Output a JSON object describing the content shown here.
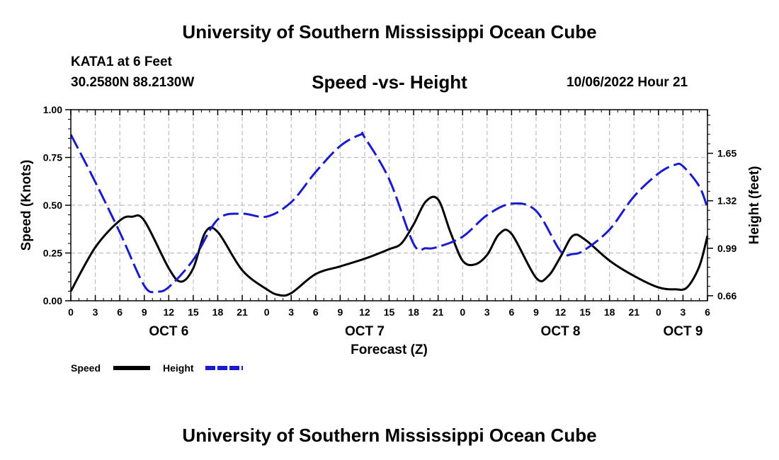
{
  "header": {
    "title": "University of Southern Mississippi Ocean Cube",
    "station_name": "KATA1 at 6 Feet",
    "coords": "30.2580N  88.2130W",
    "chart_title": "Speed -vs- Height",
    "run_time": "10/06/2022 Hour 21"
  },
  "footer": {
    "title": "University of Southern Mississippi Ocean Cube"
  },
  "colors": {
    "speed": "#000000",
    "height": "#1a1ad0"
  },
  "chart_data": {
    "type": "line",
    "title": "Speed -vs- Height",
    "xlabel": "Forecast (Z)",
    "ylabel": "Speed (Knots)",
    "y2label": "Height (feet)",
    "xlim": [
      0,
      78
    ],
    "ylim": [
      0,
      1
    ],
    "y2lim": [
      0.625,
      1.953
    ],
    "x_ticks": [
      0,
      3,
      6,
      9,
      12,
      15,
      18,
      21,
      24,
      27,
      30,
      33,
      36,
      39,
      42,
      45,
      48,
      51,
      54,
      57,
      60,
      63,
      66,
      69,
      72,
      75,
      78
    ],
    "x_tick_labels": [
      "0",
      "3",
      "6",
      "9",
      "12",
      "15",
      "18",
      "21",
      "0",
      "3",
      "6",
      "9",
      "12",
      "15",
      "18",
      "21",
      "0",
      "3",
      "6",
      "9",
      "12",
      "15",
      "18",
      "21",
      "0",
      "3",
      "6"
    ],
    "day_labels": [
      {
        "x": 12,
        "label": "OCT 6"
      },
      {
        "x": 36,
        "label": "OCT 7"
      },
      {
        "x": 60,
        "label": "OCT 8"
      },
      {
        "x": 75,
        "label": "OCT 9"
      }
    ],
    "y_ticks": [
      0.0,
      0.25,
      0.5,
      0.75,
      1.0
    ],
    "y_tick_labels": [
      "0.00",
      "0.25",
      "0.50",
      "0.75",
      "1.00"
    ],
    "y2_ticks": [
      0.66,
      0.99,
      1.32,
      1.65
    ],
    "y2_tick_labels": [
      "0.66",
      "0.99",
      "1.32",
      "1.65"
    ],
    "legend": [
      {
        "label": "Speed",
        "series": "speed",
        "style": "solid"
      },
      {
        "label": "Height",
        "series": "height",
        "style": "dashed"
      }
    ],
    "series": [
      {
        "name": "Speed",
        "axis": "left",
        "style": "solid",
        "points": [
          [
            0,
            0.05
          ],
          [
            3,
            0.28
          ],
          [
            6,
            0.42
          ],
          [
            7.5,
            0.44
          ],
          [
            9,
            0.42
          ],
          [
            12,
            0.17
          ],
          [
            13.5,
            0.1
          ],
          [
            15,
            0.17
          ],
          [
            16.5,
            0.36
          ],
          [
            18,
            0.36
          ],
          [
            21,
            0.16
          ],
          [
            24,
            0.06
          ],
          [
            25.5,
            0.03
          ],
          [
            27,
            0.04
          ],
          [
            30,
            0.14
          ],
          [
            33,
            0.18
          ],
          [
            36,
            0.22
          ],
          [
            39,
            0.27
          ],
          [
            40.5,
            0.3
          ],
          [
            42,
            0.4
          ],
          [
            43.5,
            0.52
          ],
          [
            45,
            0.53
          ],
          [
            46.5,
            0.36
          ],
          [
            48,
            0.21
          ],
          [
            49.5,
            0.19
          ],
          [
            51,
            0.24
          ],
          [
            52.5,
            0.35
          ],
          [
            54,
            0.35
          ],
          [
            57,
            0.12
          ],
          [
            58.5,
            0.13
          ],
          [
            60,
            0.23
          ],
          [
            61.5,
            0.34
          ],
          [
            63,
            0.32
          ],
          [
            66,
            0.21
          ],
          [
            69,
            0.13
          ],
          [
            72,
            0.07
          ],
          [
            74,
            0.06
          ],
          [
            75.5,
            0.07
          ],
          [
            77,
            0.18
          ],
          [
            78,
            0.34
          ]
        ]
      },
      {
        "name": "Height",
        "axis": "right",
        "style": "dashed",
        "points": [
          [
            0,
            1.78
          ],
          [
            3,
            1.45
          ],
          [
            6,
            1.1
          ],
          [
            9,
            0.73
          ],
          [
            10.5,
            0.69
          ],
          [
            12,
            0.72
          ],
          [
            15,
            0.91
          ],
          [
            18,
            1.19
          ],
          [
            21,
            1.23
          ],
          [
            24,
            1.21
          ],
          [
            27,
            1.31
          ],
          [
            30,
            1.52
          ],
          [
            33,
            1.7
          ],
          [
            35.5,
            1.78
          ],
          [
            36,
            1.76
          ],
          [
            39,
            1.47
          ],
          [
            42,
            1.02
          ],
          [
            43.5,
            0.99
          ],
          [
            45,
            1.0
          ],
          [
            48,
            1.07
          ],
          [
            51,
            1.22
          ],
          [
            54,
            1.3
          ],
          [
            57,
            1.25
          ],
          [
            60,
            0.97
          ],
          [
            61.5,
            0.95
          ],
          [
            63,
            0.98
          ],
          [
            66,
            1.12
          ],
          [
            69,
            1.35
          ],
          [
            72,
            1.51
          ],
          [
            74,
            1.57
          ],
          [
            75,
            1.56
          ],
          [
            77,
            1.42
          ],
          [
            78,
            1.27
          ]
        ]
      }
    ]
  }
}
